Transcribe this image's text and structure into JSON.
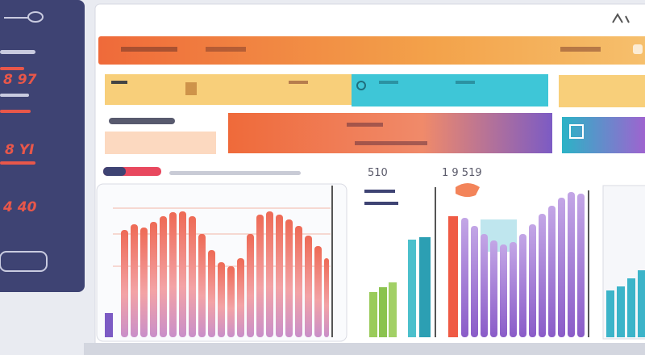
{
  "sidebar": {
    "items": [
      "8 97",
      "8 YI",
      "4 40"
    ]
  },
  "panels": {
    "middle_chart_label": "510",
    "right_chart_label": "1 9 519"
  }
}
